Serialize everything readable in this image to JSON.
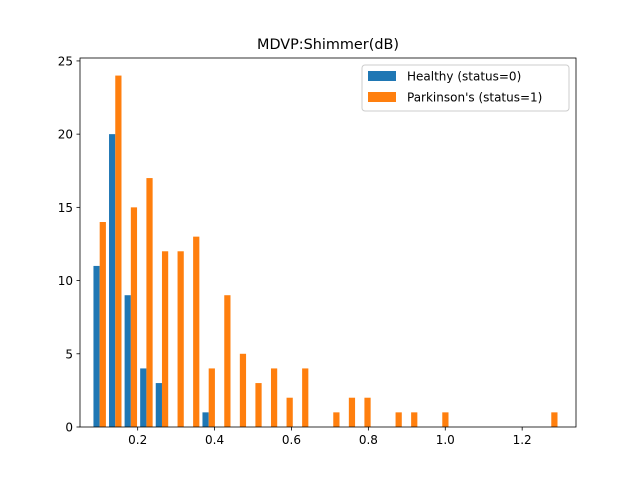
{
  "chart_data": {
    "type": "bar",
    "title": "MDVP:Shimmer(dB)",
    "xlabel": "",
    "ylabel": "",
    "xlim": [
      0.05,
      1.34
    ],
    "ylim": [
      0,
      25.2
    ],
    "xticks": [
      0.2,
      0.4,
      0.6,
      0.8,
      1.0,
      1.2
    ],
    "yticks": [
      0,
      5,
      10,
      15,
      20,
      25
    ],
    "xtick_labels": [
      "0.2",
      "0.4",
      "0.6",
      "0.8",
      "1.0",
      "1.2"
    ],
    "ytick_labels": [
      "0",
      "5",
      "10",
      "15",
      "20",
      "25"
    ],
    "grid": false,
    "legend_position": "top-right",
    "bin_edges": [
      0.085,
      0.1255,
      0.166,
      0.2065,
      0.247,
      0.2875,
      0.328,
      0.3685,
      0.409,
      0.4495,
      0.49,
      0.5305,
      0.571,
      0.6115,
      0.652,
      0.6925,
      0.733,
      0.7735,
      0.814,
      0.8545,
      0.895,
      0.9355,
      0.976,
      1.0165,
      1.057,
      1.0975,
      1.138,
      1.1785,
      1.219,
      1.2595,
      1.3
    ],
    "series": [
      {
        "name": "Healthy (status=0)",
        "color": "#1f77b4",
        "values": [
          11,
          20,
          9,
          4,
          3,
          0,
          0,
          1,
          0,
          0,
          0,
          0,
          0,
          0,
          0,
          0,
          0,
          0,
          0,
          0,
          0,
          0,
          0,
          0,
          0,
          0,
          0,
          0,
          0,
          0
        ]
      },
      {
        "name": "Parkinson's (status=1)",
        "color": "#ff7f0e",
        "values": [
          14,
          24,
          15,
          17,
          12,
          12,
          13,
          4,
          9,
          5,
          3,
          4,
          2,
          4,
          0,
          1,
          2,
          2,
          0,
          1,
          1,
          0,
          1,
          0,
          0,
          0,
          0,
          0,
          0,
          1
        ]
      }
    ]
  }
}
